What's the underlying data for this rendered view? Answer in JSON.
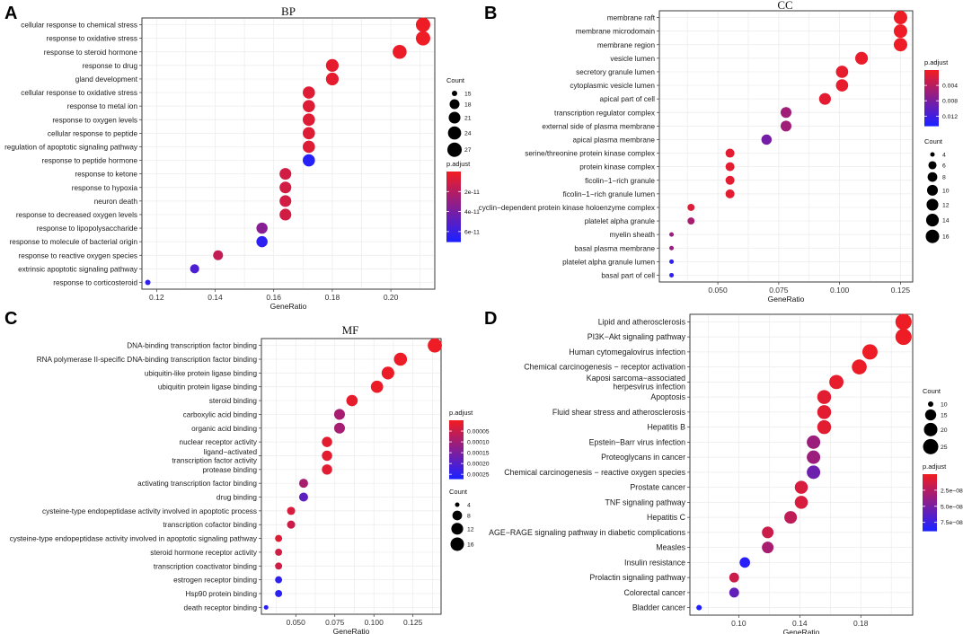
{
  "panel_letters": [
    "A",
    "B",
    "C",
    "D"
  ],
  "colors": {
    "high": "#ee1c25",
    "low": "#2020ff",
    "grid": "#ebebeb"
  },
  "chart_data": [
    {
      "type": "scatter",
      "title": "BP",
      "xlabel": "GeneRatio",
      "xlim": [
        0.115,
        0.215
      ],
      "xticks": [
        0.12,
        0.14,
        0.16,
        0.18,
        0.2
      ],
      "tick_labels": [
        "0.12",
        "0.14",
        "0.16",
        "0.18",
        "0.20"
      ],
      "size_legend": {
        "title": "Count",
        "values": [
          15,
          18,
          21,
          24,
          27
        ]
      },
      "color_legend": {
        "title": "p.adjust",
        "ticks": [
          2e-11,
          4e-11,
          6e-11
        ],
        "tick_labels": [
          "2e-11",
          "4e-11",
          "6e-11"
        ],
        "range": [
          0,
          7e-11
        ]
      },
      "terms": [
        {
          "label": "cellular response to chemical stress",
          "x": 0.211,
          "count": 27,
          "padj": 1e-13
        },
        {
          "label": "response to oxidative stress",
          "x": 0.211,
          "count": 27,
          "padj": 1e-13
        },
        {
          "label": "response to steroid hormone",
          "x": 0.203,
          "count": 26,
          "padj": 1e-12
        },
        {
          "label": "response to drug",
          "x": 0.18,
          "count": 23,
          "padj": 3e-12
        },
        {
          "label": "gland development",
          "x": 0.18,
          "count": 23,
          "padj": 3e-12
        },
        {
          "label": "cellular response to oxidative stress",
          "x": 0.172,
          "count": 22,
          "padj": 5e-12
        },
        {
          "label": "response to metal ion",
          "x": 0.172,
          "count": 22,
          "padj": 5e-12
        },
        {
          "label": "response to oxygen levels",
          "x": 0.172,
          "count": 22,
          "padj": 5e-12
        },
        {
          "label": "cellular response to peptide",
          "x": 0.172,
          "count": 22,
          "padj": 5e-12
        },
        {
          "label": "regulation of apoptotic signaling pathway",
          "x": 0.172,
          "count": 22,
          "padj": 5e-12
        },
        {
          "label": "response to peptide hormone",
          "x": 0.172,
          "count": 22,
          "padj": 6.8e-11
        },
        {
          "label": "response to ketone",
          "x": 0.164,
          "count": 21,
          "padj": 1e-11
        },
        {
          "label": "response to hypoxia",
          "x": 0.164,
          "count": 21,
          "padj": 1e-11
        },
        {
          "label": "neuron death",
          "x": 0.164,
          "count": 21,
          "padj": 1e-11
        },
        {
          "label": "response to decreased oxygen levels",
          "x": 0.164,
          "count": 21,
          "padj": 1e-11
        },
        {
          "label": "response to lipopolysaccharide",
          "x": 0.156,
          "count": 20,
          "padj": 3.5e-11
        },
        {
          "label": "response to molecule of bacterial origin",
          "x": 0.156,
          "count": 20,
          "padj": 6.6e-11
        },
        {
          "label": "response to reactive oxygen species",
          "x": 0.141,
          "count": 18,
          "padj": 1.5e-11
        },
        {
          "label": "extrinsic apoptotic signaling pathway",
          "x": 0.133,
          "count": 17,
          "padj": 5.5e-11
        },
        {
          "label": "response to corticosteroid",
          "x": 0.117,
          "count": 15,
          "padj": 6.5e-11
        }
      ]
    },
    {
      "type": "scatter",
      "title": "CC",
      "xlabel": "GeneRatio",
      "xlim": [
        0.026,
        0.13
      ],
      "xticks": [
        0.05,
        0.075,
        0.1,
        0.125
      ],
      "tick_labels": [
        "0.050",
        "0.075",
        "0.100",
        "0.125"
      ],
      "size_legend": {
        "title": "Count",
        "values": [
          4,
          6,
          8,
          10,
          12,
          14,
          16
        ]
      },
      "color_legend": {
        "title": "p.adjust",
        "ticks": [
          0.004,
          0.008,
          0.012
        ],
        "tick_labels": [
          "0.004",
          "0.008",
          "0.012"
        ],
        "range": [
          0,
          0.0145
        ]
      },
      "terms": [
        {
          "label": "membrane raft",
          "x": 0.125,
          "count": 16,
          "padj": 0.0001
        },
        {
          "label": "membrane microdomain",
          "x": 0.125,
          "count": 16,
          "padj": 0.0001
        },
        {
          "label": "membrane region",
          "x": 0.125,
          "count": 16,
          "padj": 0.0001
        },
        {
          "label": "vesicle lumen",
          "x": 0.109,
          "count": 14,
          "padj": 0.0003
        },
        {
          "label": "secretory granule lumen",
          "x": 0.101,
          "count": 13,
          "padj": 0.0005
        },
        {
          "label": "cytoplasmic vesicle lumen",
          "x": 0.101,
          "count": 13,
          "padj": 0.0005
        },
        {
          "label": "apical part of cell",
          "x": 0.094,
          "count": 12,
          "padj": 0.0008
        },
        {
          "label": "transcription regulator complex",
          "x": 0.078,
          "count": 10,
          "padj": 0.0055
        },
        {
          "label": "external side of plasma membrane",
          "x": 0.078,
          "count": 10,
          "padj": 0.0055
        },
        {
          "label": "apical plasma membrane",
          "x": 0.07,
          "count": 9,
          "padj": 0.0085
        },
        {
          "label": "serine/threonine protein kinase complex",
          "x": 0.055,
          "count": 7,
          "padj": 0.0008
        },
        {
          "label": "protein kinase complex",
          "x": 0.055,
          "count": 7,
          "padj": 0.0008
        },
        {
          "label": "ficolin−1−rich granule",
          "x": 0.055,
          "count": 7,
          "padj": 0.0008
        },
        {
          "label": "ficolin−1−rich granule lumen",
          "x": 0.055,
          "count": 7,
          "padj": 0.0008
        },
        {
          "label": "cyclin−dependent protein kinase holoenzyme complex",
          "x": 0.039,
          "count": 5,
          "padj": 0.0012
        },
        {
          "label": "platelet alpha granule",
          "x": 0.039,
          "count": 5,
          "padj": 0.005
        },
        {
          "label": "myelin sheath",
          "x": 0.031,
          "count": 4,
          "padj": 0.006
        },
        {
          "label": "basal plasma membrane",
          "x": 0.031,
          "count": 4,
          "padj": 0.006
        },
        {
          "label": "platelet alpha granule lumen",
          "x": 0.031,
          "count": 4,
          "padj": 0.0135
        },
        {
          "label": "basal part of cell",
          "x": 0.031,
          "count": 4,
          "padj": 0.0135
        }
      ]
    },
    {
      "type": "scatter",
      "title": "MF",
      "xlabel": "GeneRatio",
      "xlim": [
        0.028,
        0.143
      ],
      "xticks": [
        0.05,
        0.075,
        0.1,
        0.125
      ],
      "tick_labels": [
        "0.050",
        "0.075",
        "0.100",
        "0.125"
      ],
      "size_legend": {
        "title": "Count",
        "values": [
          4,
          8,
          12,
          16
        ]
      },
      "color_legend": {
        "title": "p.adjust",
        "ticks": [
          5e-05,
          0.0001,
          0.00015,
          0.0002,
          0.00025
        ],
        "tick_labels": [
          "0.00005",
          "0.00010",
          "0.00015",
          "0.00020",
          "0.00025"
        ],
        "range": [
          0,
          0.00027
        ]
      },
      "terms": [
        {
          "label": "DNA-binding transcription factor binding",
          "x": 0.139,
          "count": 18,
          "padj": 1e-07
        },
        {
          "label": "RNA polymerase II-specific DNA-binding transcription factor binding",
          "x": 0.117,
          "count": 15,
          "padj": 1e-06
        },
        {
          "label": "ubiquitin-like protein ligase binding",
          "x": 0.109,
          "count": 14,
          "padj": 2e-06
        },
        {
          "label": "ubiquitin protein ligase binding",
          "x": 0.102,
          "count": 13,
          "padj": 3e-06
        },
        {
          "label": "steroid binding",
          "x": 0.086,
          "count": 11,
          "padj": 1e-05
        },
        {
          "label": "carboxylic acid binding",
          "x": 0.078,
          "count": 10,
          "padj": 9.5e-05
        },
        {
          "label": "organic acid binding",
          "x": 0.078,
          "count": 10,
          "padj": 9.5e-05
        },
        {
          "label": "nuclear receptor activity",
          "x": 0.07,
          "count": 9,
          "padj": 1.5e-05
        },
        {
          "label": "ligand−activated\ntranscription factor activity",
          "x": 0.07,
          "count": 9,
          "padj": 1.5e-05
        },
        {
          "label": "protease binding",
          "x": 0.07,
          "count": 9,
          "padj": 1.5e-05
        },
        {
          "label": "activating transcription factor binding",
          "x": 0.055,
          "count": 7,
          "padj": 9e-05
        },
        {
          "label": "drug binding",
          "x": 0.055,
          "count": 7,
          "padj": 0.00019
        },
        {
          "label": "cysteine-type endopeptidase activity involved in apoptotic process",
          "x": 0.047,
          "count": 6,
          "padj": 3e-05
        },
        {
          "label": "transcription cofactor binding",
          "x": 0.047,
          "count": 6,
          "padj": 4.5e-05
        },
        {
          "label": "cysteine-type endopeptidase activity involved in apoptotic signaling pathway",
          "x": 0.039,
          "count": 5,
          "padj": 2e-05
        },
        {
          "label": "steroid hormone receptor activity",
          "x": 0.039,
          "count": 5,
          "padj": 4e-05
        },
        {
          "label": "transcription coactivator binding",
          "x": 0.039,
          "count": 5,
          "padj": 4e-05
        },
        {
          "label": "estrogen receptor binding",
          "x": 0.039,
          "count": 5,
          "padj": 0.00025
        },
        {
          "label": "Hsp90 protein binding",
          "x": 0.039,
          "count": 5,
          "padj": 0.000255
        },
        {
          "label": "death receptor binding",
          "x": 0.031,
          "count": 4,
          "padj": 0.00026
        }
      ]
    },
    {
      "type": "scatter",
      "title": "",
      "xlabel": "GeneRatio",
      "xlim": [
        0.068,
        0.214
      ],
      "xticks": [
        0.1,
        0.14,
        0.18
      ],
      "tick_labels": [
        "0.10",
        "0.14",
        "0.18"
      ],
      "size_legend": {
        "title": "Count",
        "values": [
          10,
          15,
          20,
          25
        ]
      },
      "color_legend": {
        "title": "p.adjust",
        "ticks": [
          2.5e-08,
          5e-08,
          7.5e-08
        ],
        "tick_labels": [
          "2.5e−08",
          "5.0e−08",
          "7.5e−08"
        ],
        "range": [
          0,
          8.8e-08
        ]
      },
      "terms": [
        {
          "label": "Lipid and atherosclerosis",
          "x": 0.208,
          "count": 28,
          "padj": 1e-10
        },
        {
          "label": "PI3K−Akt signaling pathway",
          "x": 0.208,
          "count": 28,
          "padj": 1e-10
        },
        {
          "label": "Human cytomegalovirus infection",
          "x": 0.186,
          "count": 25,
          "padj": 5e-10
        },
        {
          "label": "Chemical carcinogenesis − receptor activation",
          "x": 0.179,
          "count": 24,
          "padj": 1e-09
        },
        {
          "label": "Kaposi sarcoma−associated\nherpesvirus infection",
          "x": 0.164,
          "count": 22,
          "padj": 3e-09
        },
        {
          "label": "Apoptosis",
          "x": 0.156,
          "count": 21,
          "padj": 5e-09
        },
        {
          "label": "Fluid shear stress and atherosclerosis",
          "x": 0.156,
          "count": 21,
          "padj": 5e-09
        },
        {
          "label": "Hepatitis B",
          "x": 0.156,
          "count": 21,
          "padj": 5e-09
        },
        {
          "label": "Epstein−Barr virus infection",
          "x": 0.149,
          "count": 20,
          "padj": 3.5e-08
        },
        {
          "label": "Proteoglycans in cancer",
          "x": 0.149,
          "count": 20,
          "padj": 3.5e-08
        },
        {
          "label": "Chemical carcinogenesis − reactive oxygen species",
          "x": 0.149,
          "count": 20,
          "padj": 5.5e-08
        },
        {
          "label": "Prostate cancer",
          "x": 0.141,
          "count": 19,
          "padj": 1e-08
        },
        {
          "label": "TNF signaling pathway",
          "x": 0.141,
          "count": 19,
          "padj": 1e-08
        },
        {
          "label": "Hepatitis C",
          "x": 0.134,
          "count": 18,
          "padj": 2e-08
        },
        {
          "label": "AGE−RAGE signaling pathway in diabetic complications",
          "x": 0.119,
          "count": 16,
          "padj": 1.5e-08
        },
        {
          "label": "Measles",
          "x": 0.119,
          "count": 16,
          "padj": 3e-08
        },
        {
          "label": "Insulin resistance",
          "x": 0.104,
          "count": 14,
          "padj": 8.5e-08
        },
        {
          "label": "Prolactin signaling pathway",
          "x": 0.097,
          "count": 13,
          "padj": 1.5e-08
        },
        {
          "label": "Colorectal cancer",
          "x": 0.097,
          "count": 13,
          "padj": 6e-08
        },
        {
          "label": "Bladder cancer",
          "x": 0.074,
          "count": 10,
          "padj": 8.8e-08
        }
      ]
    }
  ]
}
